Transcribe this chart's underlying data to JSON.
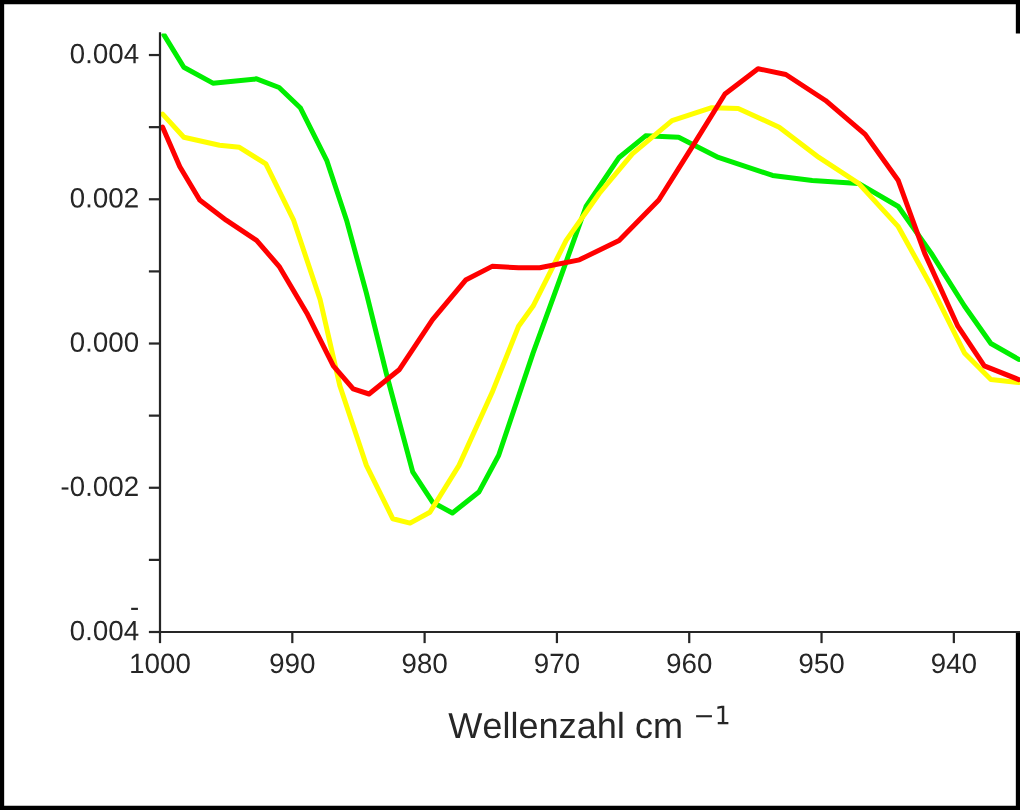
{
  "chart_data": {
    "type": "line",
    "xlabel": "Wellenzahl cm $^{−1}$",
    "xlim": [
      1000,
      935
    ],
    "xticks": [
      1000,
      990,
      980,
      970,
      960,
      950,
      940
    ],
    "ylim": [
      -0.004,
      0.0043
    ],
    "yticks": [
      {
        "value": 0.004,
        "label": "0.004"
      },
      {
        "value": 0.003,
        "label": null
      },
      {
        "value": 0.002,
        "label": "0.002"
      },
      {
        "value": 0.001,
        "label": null
      },
      {
        "value": 0.0,
        "label": "0.000"
      },
      {
        "value": -0.001,
        "label": null
      },
      {
        "value": -0.002,
        "label": "-0.002"
      },
      {
        "value": -0.003,
        "label": null
      },
      {
        "value": -0.004,
        "label": "-\n0.004"
      }
    ],
    "grid": false,
    "legend": false,
    "marker": "none",
    "line_style": "solid",
    "series": [
      {
        "color": "#00ee00",
        "x": [
          999.7,
          998.2,
          996.0,
          992.7,
          991.0,
          989.4,
          987.4,
          985.9,
          984.4,
          982.9,
          980.9,
          979.4,
          977.9,
          975.9,
          974.4,
          971.8,
          969.8,
          967.8,
          965.3,
          963.3,
          960.8,
          957.8,
          953.7,
          950.7,
          947.2,
          944.2,
          941.7,
          939.2,
          937.2,
          935.1
        ],
        "values": [
          0.00428,
          0.00383,
          0.00361,
          0.00367,
          0.00355,
          0.00327,
          0.00254,
          0.00171,
          0.0007,
          -0.00041,
          -0.00178,
          -0.0022,
          -0.00235,
          -0.00206,
          -0.00155,
          -0.00013,
          0.00088,
          0.0019,
          0.00258,
          0.00288,
          0.00286,
          0.00258,
          0.00233,
          0.00226,
          0.00222,
          0.0019,
          0.00125,
          0.00052,
          0.0,
          -0.00022
        ]
      },
      {
        "color": "#ffff00",
        "x": [
          999.8,
          998.2,
          995.5,
          994.0,
          992.0,
          989.9,
          987.9,
          986.4,
          984.4,
          982.4,
          981.1,
          979.6,
          977.4,
          974.9,
          972.9,
          971.8,
          969.3,
          966.8,
          964.3,
          961.3,
          958.3,
          956.3,
          953.2,
          950.2,
          947.2,
          944.2,
          941.7,
          939.2,
          937.2,
          935.1
        ],
        "values": [
          0.00318,
          0.00286,
          0.00275,
          0.00272,
          0.00249,
          0.00171,
          0.00061,
          -0.00059,
          -0.00169,
          -0.00243,
          -0.00249,
          -0.00234,
          -0.00169,
          -0.00068,
          0.00024,
          0.00052,
          0.00143,
          0.00208,
          0.00263,
          0.00309,
          0.00327,
          0.00326,
          0.003,
          0.00258,
          0.00222,
          0.00162,
          0.00079,
          -0.00013,
          -0.0005,
          -0.00054
        ]
      },
      {
        "color": "#ff0000",
        "x": [
          999.8,
          998.5,
          997.0,
          995.0,
          992.7,
          991.0,
          988.9,
          986.9,
          985.4,
          984.2,
          981.9,
          979.4,
          976.9,
          974.9,
          972.9,
          971.3,
          968.3,
          965.3,
          962.3,
          959.8,
          957.3,
          954.8,
          952.7,
          949.7,
          946.7,
          944.2,
          942.2,
          939.7,
          937.7,
          935.1
        ],
        "values": [
          0.003,
          0.00245,
          0.00199,
          0.00171,
          0.00143,
          0.00107,
          0.00042,
          -0.00031,
          -0.00063,
          -0.0007,
          -0.00036,
          0.00033,
          0.00088,
          0.00107,
          0.00105,
          0.00105,
          0.00116,
          0.00143,
          0.00199,
          0.00272,
          0.00346,
          0.00381,
          0.00373,
          0.00337,
          0.0029,
          0.00226,
          0.00125,
          0.00024,
          -0.00031,
          -0.0005
        ]
      }
    ]
  }
}
